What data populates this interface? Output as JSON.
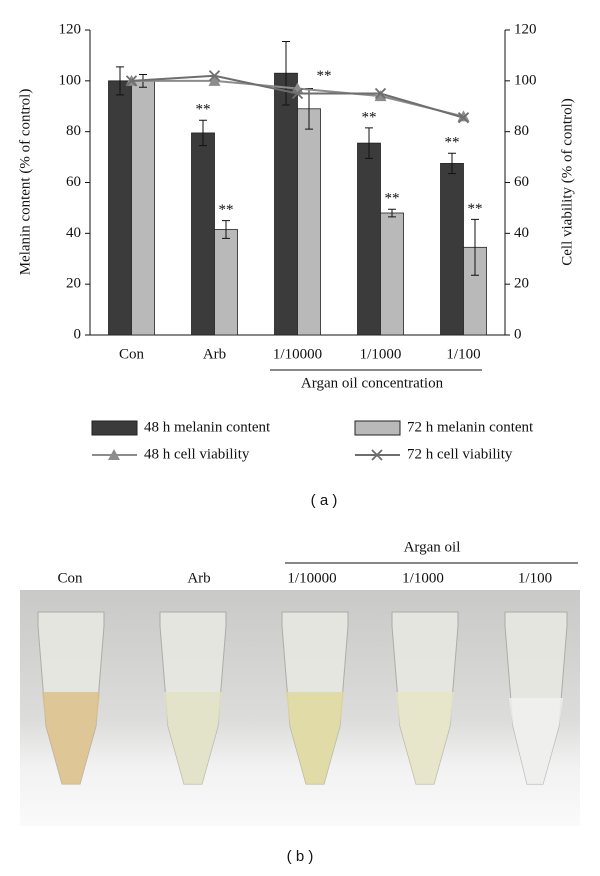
{
  "chart_data": {
    "type": "bar",
    "categories": [
      "Con",
      "Arb",
      "1/10000",
      "1/1000",
      "1/100"
    ],
    "group_label": "Argan oil concentration",
    "ylabel": "Melanin content (% of control)",
    "y2label": "Cell viability (% of control)",
    "ylim": [
      0,
      120
    ],
    "yticks": [
      0,
      20,
      40,
      60,
      80,
      100,
      120
    ],
    "y2lim": [
      0,
      120
    ],
    "y2ticks": [
      0,
      20,
      40,
      60,
      80,
      100,
      120
    ],
    "series": [
      {
        "name": "48 h melanin content",
        "type": "bar",
        "color": "#3b3b3b",
        "values": [
          100,
          79.5,
          103,
          75.5,
          67.5
        ],
        "errors": [
          5.5,
          5,
          12.5,
          6,
          4
        ],
        "annotations": [
          null,
          "**",
          null,
          "**",
          "**"
        ]
      },
      {
        "name": "72 h melanin content",
        "type": "bar",
        "color": "#b9b9b9",
        "values": [
          100,
          41.5,
          89,
          48,
          34.5
        ],
        "errors": [
          2.5,
          3.5,
          8,
          1.5,
          11
        ],
        "annotations": [
          null,
          "**",
          "**",
          "**",
          "**"
        ]
      },
      {
        "name": "48 h cell viability",
        "type": "line",
        "marker": "triangle",
        "axis": "y2",
        "color": "#8c8c8c",
        "values": [
          100,
          100,
          97,
          94,
          86
        ]
      },
      {
        "name": "72 h cell viability",
        "type": "line",
        "marker": "x",
        "axis": "y2",
        "color": "#6e6e6e",
        "values": [
          100,
          102,
          95,
          95,
          85.5
        ]
      }
    ]
  },
  "panel_labels": [
    "( a )",
    "( b )"
  ],
  "photo": {
    "group_label": "Argan oil",
    "labels": [
      "Con",
      "Arb",
      "1/10000",
      "1/1000",
      "1/100"
    ]
  }
}
